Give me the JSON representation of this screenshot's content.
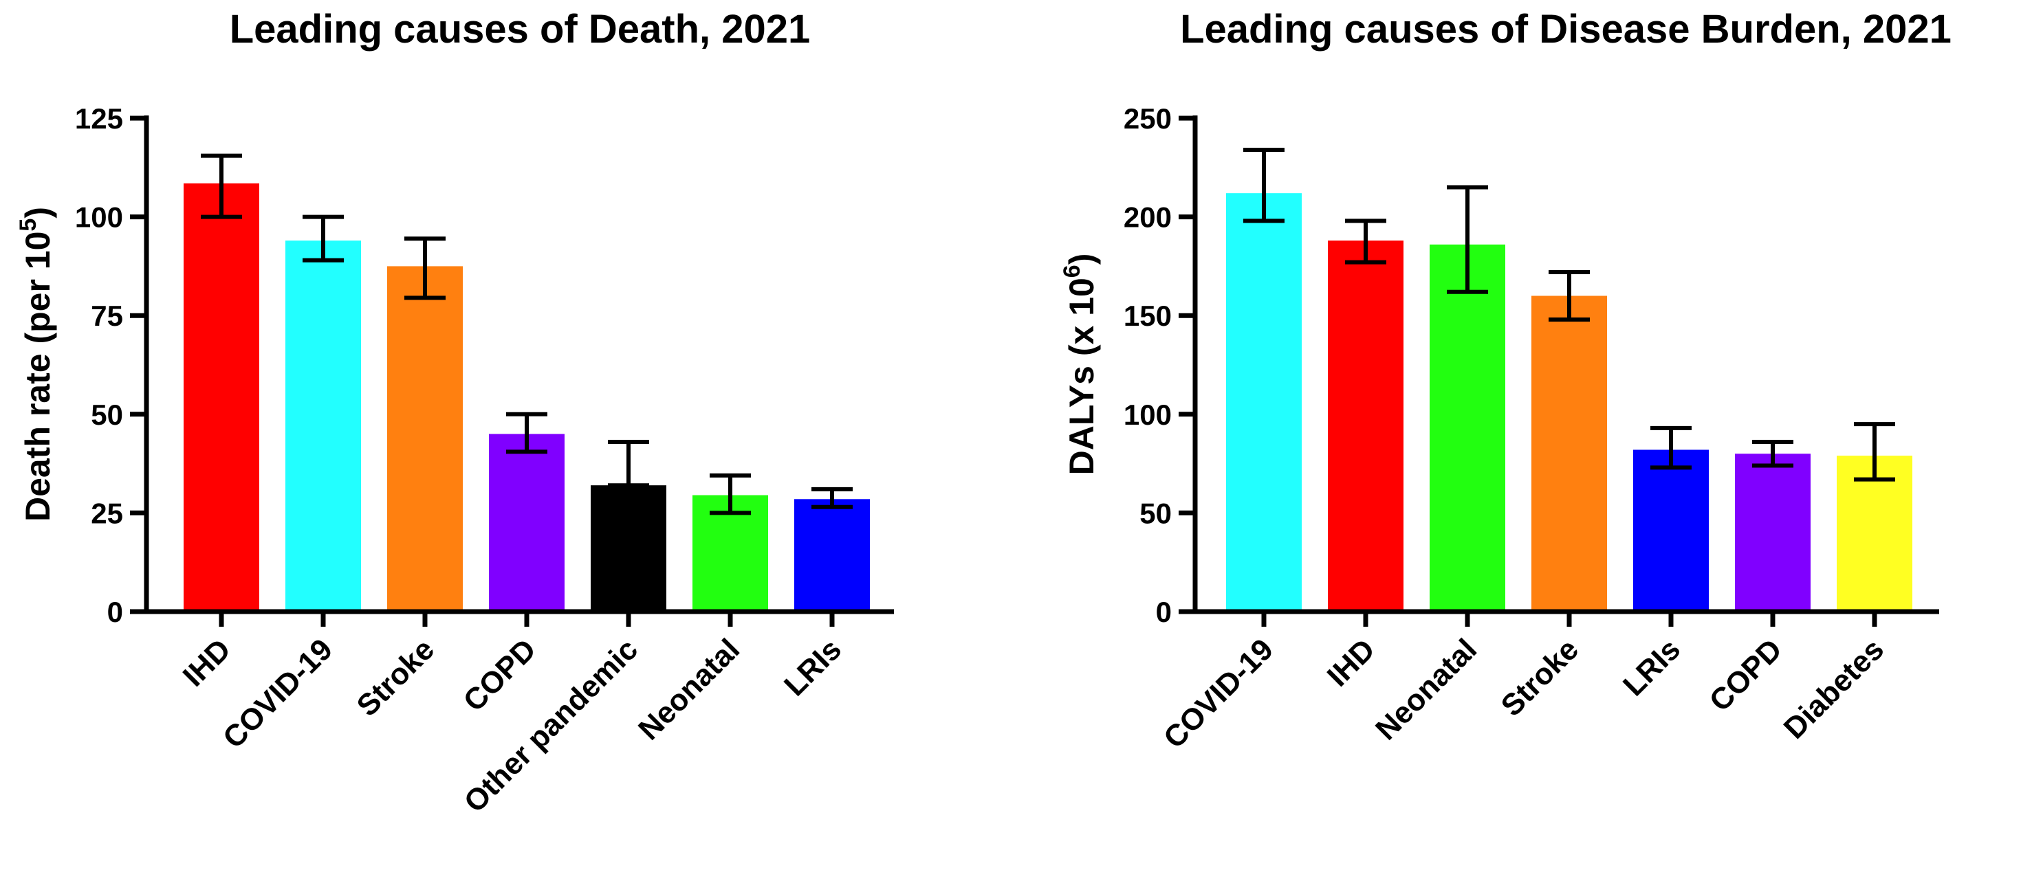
{
  "chart_data": [
    {
      "type": "bar",
      "title": "Leading causes of Death, 2021",
      "ylabel": "Death rate (per 10",
      "ylabel_sup": "5",
      "ylabel_suffix": ")",
      "xlabel": "",
      "ylim": [
        0,
        125
      ],
      "yticks": [
        0,
        25,
        50,
        75,
        100,
        125
      ],
      "categories": [
        "IHD",
        "COVID-19",
        "Stroke",
        "COPD",
        "Other pandemic",
        "Neonatal",
        "LRIs"
      ],
      "values": [
        108.5,
        94,
        87.5,
        45,
        32,
        29.5,
        28.5
      ],
      "error_low": [
        100,
        89,
        79.5,
        40.5,
        32,
        25,
        26.5
      ],
      "error_high": [
        115.5,
        100,
        94.5,
        50,
        43,
        34.5,
        31
      ],
      "colors": [
        "#ff0000",
        "#22ffff",
        "#ff8010",
        "#8000ff",
        "#000000",
        "#22ff10",
        "#0000ff"
      ]
    },
    {
      "type": "bar",
      "title": "Leading causes of Disease Burden, 2021",
      "ylabel": "DALYs (x 10",
      "ylabel_sup": "6",
      "ylabel_suffix": ")",
      "xlabel": "",
      "ylim": [
        0,
        250
      ],
      "yticks": [
        0,
        50,
        100,
        150,
        200,
        250
      ],
      "categories": [
        "COVID-19",
        "IHD",
        "Neonatal",
        "Stroke",
        "LRIs",
        "COPD",
        "Diabetes"
      ],
      "values": [
        212,
        188,
        186,
        160,
        82,
        80,
        79
      ],
      "error_low": [
        198,
        177,
        162,
        148,
        73,
        74,
        67
      ],
      "error_high": [
        234,
        198,
        215,
        172,
        93,
        86,
        95
      ],
      "colors": [
        "#22ffff",
        "#ff0000",
        "#22ff10",
        "#ff8010",
        "#0000ff",
        "#8000ff",
        "#ffff22"
      ]
    }
  ]
}
